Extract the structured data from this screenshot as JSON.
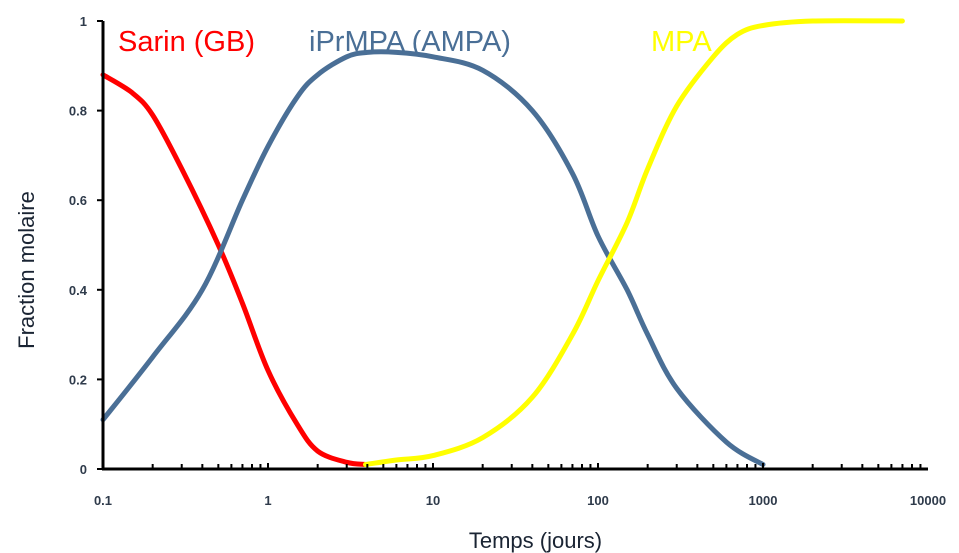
{
  "chart_data": {
    "type": "line",
    "title": "",
    "xlabel": "Temps (jours)",
    "ylabel": "Fraction molaire",
    "xscale": "log",
    "xlim": [
      0.1,
      10000
    ],
    "ylim": [
      0,
      1
    ],
    "x_ticks": [
      0.1,
      1,
      10,
      100,
      1000,
      10000
    ],
    "x_tick_labels": [
      "0.1",
      "1",
      "10",
      "100",
      "1000",
      "10000"
    ],
    "y_ticks": [
      0,
      0.2,
      0.4,
      0.6,
      0.8,
      1
    ],
    "y_tick_labels": [
      "0",
      "0.2",
      "0.4",
      "0.6",
      "0.8",
      "1"
    ],
    "grid": false,
    "legend": "inline labels at top of plot",
    "series": [
      {
        "name": "Sarin (GB)",
        "color": "#ff0000",
        "x": [
          0.1,
          0.15,
          0.2,
          0.3,
          0.5,
          0.7,
          1,
          1.5,
          2,
          3,
          3.9
        ],
        "y": [
          0.88,
          0.84,
          0.79,
          0.67,
          0.5,
          0.37,
          0.22,
          0.1,
          0.04,
          0.015,
          0.01
        ]
      },
      {
        "name": "iPrMPA (AMPA)",
        "color": "#4a6f96",
        "x": [
          0.1,
          0.2,
          0.4,
          0.7,
          1,
          1.5,
          2,
          3,
          4,
          6,
          10,
          20,
          40,
          70,
          100,
          150,
          200,
          300,
          600,
          1000
        ],
        "y": [
          0.11,
          0.25,
          0.4,
          0.6,
          0.72,
          0.83,
          0.88,
          0.92,
          0.93,
          0.93,
          0.92,
          0.89,
          0.8,
          0.66,
          0.52,
          0.4,
          0.3,
          0.18,
          0.06,
          0.01
        ]
      },
      {
        "name": "MPA",
        "color": "#ffff00",
        "x": [
          3.9,
          6,
          10,
          20,
          40,
          70,
          100,
          150,
          200,
          300,
          500,
          700,
          1000,
          2000,
          7000
        ],
        "y": [
          0.01,
          0.02,
          0.03,
          0.07,
          0.16,
          0.3,
          0.42,
          0.55,
          0.67,
          0.81,
          0.92,
          0.97,
          0.99,
          1.0,
          1.0
        ]
      }
    ]
  }
}
